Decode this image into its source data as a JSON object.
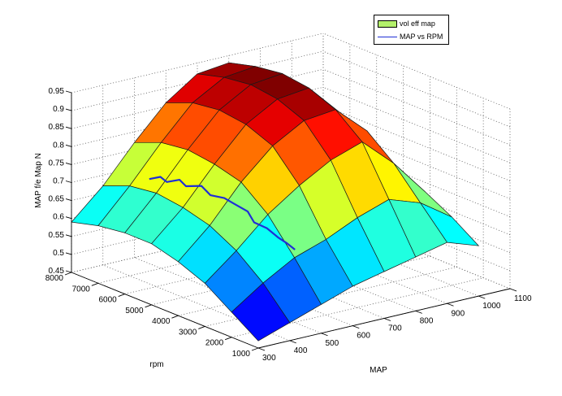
{
  "chart_data": {
    "type": "surface3d",
    "title": "",
    "zlabel": "MAP f/e Map N",
    "xlabel": "MAP",
    "ylabel": "rpm",
    "zlim": [
      0.45,
      0.95
    ],
    "xlim": [
      300,
      1100
    ],
    "ylim": [
      1000,
      8000
    ],
    "z_ticks": [
      "0.95",
      "0.9",
      "0.85",
      "0.8",
      "0.75",
      "0.7",
      "0.65",
      "0.6",
      "0.55",
      "0.5",
      "0.45"
    ],
    "x_ticks": [
      "300",
      "400",
      "500",
      "600",
      "700",
      "800",
      "900",
      "1000",
      "1100"
    ],
    "y_ticks": [
      "1000",
      "2000",
      "3000",
      "4000",
      "5000",
      "6000",
      "7000",
      "8000"
    ],
    "grid": true,
    "colormap": "jet",
    "legend": {
      "position": "top-right",
      "entries": [
        {
          "label": "vol eff map",
          "type": "surface",
          "color": "#b3f06b"
        },
        {
          "label": "MAP vs RPM",
          "type": "line",
          "color": "#1f2fd6"
        }
      ]
    },
    "surface": {
      "x": [
        300,
        400,
        500,
        600,
        700,
        800,
        900,
        1000
      ],
      "y": [
        1000,
        2000,
        3000,
        4000,
        5000,
        6000,
        7000,
        8000
      ],
      "z": [
        [
          0.47,
          0.5,
          0.53,
          0.56,
          0.58,
          0.6,
          0.62,
          0.59
        ],
        [
          0.52,
          0.58,
          0.63,
          0.66,
          0.7,
          0.73,
          0.7,
          0.64
        ],
        [
          0.57,
          0.64,
          0.72,
          0.78,
          0.83,
          0.86,
          0.78,
          0.68
        ],
        [
          0.6,
          0.68,
          0.78,
          0.86,
          0.91,
          0.92,
          0.84,
          0.7
        ],
        [
          0.62,
          0.7,
          0.8,
          0.89,
          0.94,
          0.95,
          0.86,
          0.72
        ],
        [
          0.62,
          0.71,
          0.81,
          0.9,
          0.95,
          0.96,
          0.87,
          0.72
        ],
        [
          0.61,
          0.7,
          0.8,
          0.89,
          0.94,
          0.95,
          0.86,
          0.71
        ],
        [
          0.59,
          0.67,
          0.77,
          0.86,
          0.92,
          0.93,
          0.84,
          0.68
        ]
      ]
    },
    "trace_description": "MAP vs RPM scatter trace clustered around MAP 400-500 across 2000-6500 rpm"
  },
  "legend": {
    "surface_label": "vol eff map",
    "line_label": "MAP vs RPM"
  }
}
